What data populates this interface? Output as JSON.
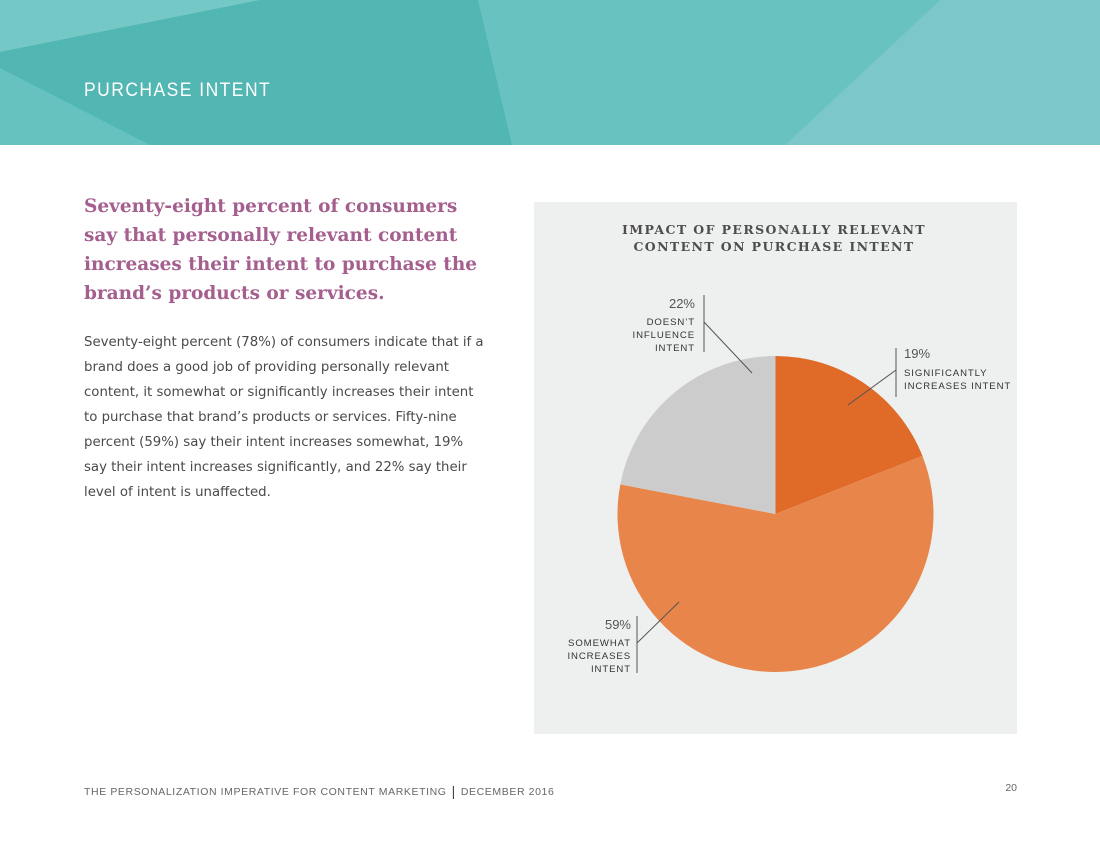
{
  "header": {
    "title": "PURCHASE INTENT"
  },
  "main": {
    "headline": "Seventy-eight percent of consumers say that personally relevant content increases their intent to purchase the brand’s products or services.",
    "body": "Seventy-eight percent (78%) of consumers indicate that if a brand does a good job of providing personally relevant content, it somewhat or significantly increases their intent to purchase that brand’s products or services. Fifty-nine percent (59%) say their intent increases somewhat, 19% say their intent increases significantly, and 22% say their level of intent is unaffected."
  },
  "chart_data": {
    "type": "pie",
    "title_lines": [
      "IMPACT OF PERSONALLY RELEVANT",
      "CONTENT ON PURCHASE INTENT"
    ],
    "slices": [
      {
        "value": 19,
        "pct_label": "19%",
        "label_lines": [
          "SIGNIFICANTLY",
          "INCREASES INTENT"
        ],
        "color": "#e06a28"
      },
      {
        "value": 59,
        "pct_label": "59%",
        "label_lines": [
          "SOMEWHAT",
          "INCREASES",
          "INTENT"
        ],
        "color": "#e8854b"
      },
      {
        "value": 22,
        "pct_label": "22%",
        "label_lines": [
          "DOESN’T",
          "INFLUENCE",
          "INTENT"
        ],
        "color": "#cccccc"
      }
    ]
  },
  "footer": {
    "publication": "THE PERSONALIZATION IMPERATIVE FOR CONTENT MARKETING",
    "date": "DECEMBER 2016",
    "separator": "|",
    "page_number": "20"
  },
  "colors": {
    "banner": "#5bbcb9",
    "headline": "#a45f8e",
    "panel_background": "#eef0ef"
  }
}
